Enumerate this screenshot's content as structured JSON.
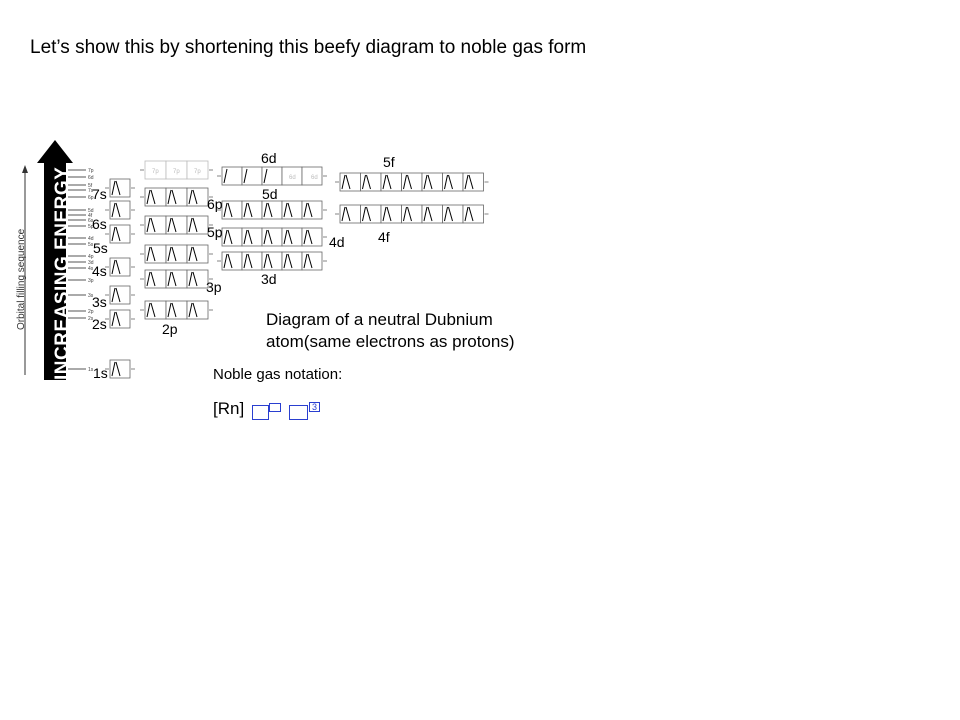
{
  "heading": "Let’s show this by shortening this beefy diagram to noble gas form",
  "diagram": {
    "energy_label": "INCREASING ENERGY",
    "sequence_label": "Orbital filling sequence",
    "ladder_ticks": [
      "7p",
      "6d",
      "5f",
      "7s",
      "6p",
      "5d",
      "4f",
      "6s",
      "5p",
      "4d",
      "5s",
      "4p",
      "3d",
      "4s",
      "3p",
      "3s",
      "2p",
      "2s",
      "1s"
    ],
    "orbital_labels": {
      "s7": "7s",
      "s6": "6s",
      "s5": "5s",
      "s4": "4s",
      "s3": "3s",
      "s2": "2s",
      "s1": "1s",
      "p6": "6p",
      "p5": "5p",
      "p3": "3p",
      "p2": "2p",
      "d6": "6d",
      "d5": "5d",
      "d4": "4d",
      "d3": "3d",
      "f5": "5f",
      "f4": "4f"
    },
    "faded_7p": [
      "7p",
      "7p",
      "7p"
    ],
    "faded_6d": [
      "6d",
      "6d"
    ],
    "caption": "Diagram of a neutral Dubnium atom(same electrons as protons)"
  },
  "notation": {
    "label": "Noble gas notation:",
    "prefix": "[Rn]",
    "superscript": "3"
  }
}
